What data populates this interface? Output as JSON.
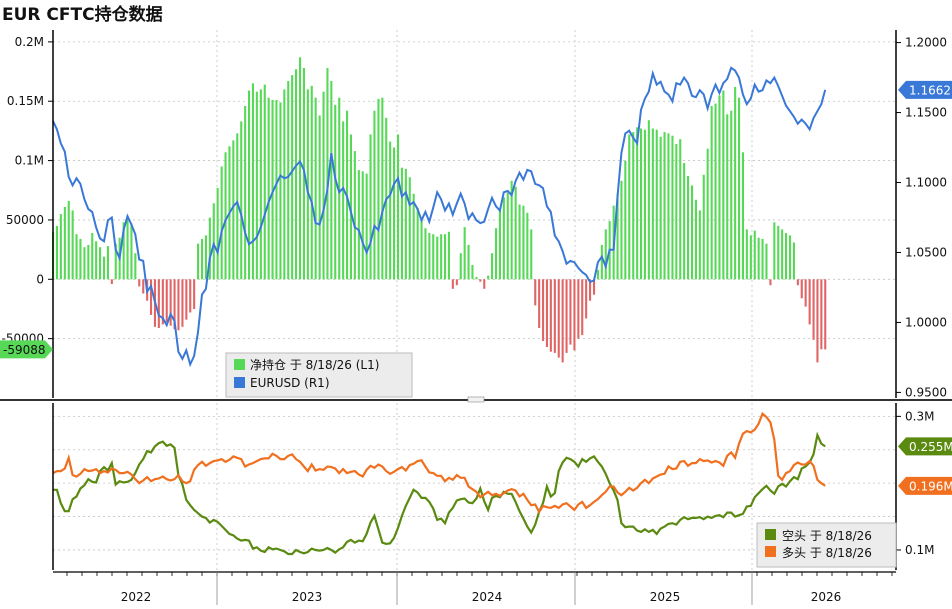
{
  "chart_title": "EUR CFTC持仓数据",
  "chart_data": [
    {
      "type": "bar",
      "panel": "top",
      "x_tick_labels": [
        "2022",
        "2023",
        "2024",
        "2025",
        "2026"
      ],
      "left_axis": {
        "ticks": [
          200000,
          150000,
          100000,
          50000,
          0,
          -50000
        ],
        "tick_labels": [
          "0.2M",
          "0.15M",
          "0.1M",
          "50000",
          "0",
          "-50000"
        ],
        "ylim": [
          -100000,
          210000
        ]
      },
      "right_axis": {
        "ticks": [
          0.95,
          1.0,
          1.05,
          1.1,
          1.15,
          1.2
        ],
        "tick_labels": [
          "0.9500",
          "1.0000",
          "1.0500",
          "1.1000",
          "1.1500",
          "1.2000"
        ],
        "ylim": [
          0.946,
          1.209
        ]
      },
      "legend": [
        {
          "label": "净持仓  于 8/18/26 (L1)",
          "color": "#57d957"
        },
        {
          "label": "EURUSD (R1)",
          "color": "#3a78d8"
        }
      ],
      "legend_position": "bottom-center",
      "grid": true,
      "series": [
        {
          "name": "净持仓",
          "type": "bar",
          "axis": "left",
          "positive_color": "#57d957",
          "negative_color": "#e06666",
          "last_value_label": "-59088",
          "values": [
            40000,
            45000,
            55000,
            61000,
            66000,
            58000,
            38000,
            34000,
            27000,
            29000,
            39000,
            32000,
            27000,
            19000,
            28000,
            -4000,
            30000,
            35000,
            48000,
            52000,
            47000,
            22000,
            -6000,
            -12000,
            -18000,
            -30000,
            -40000,
            -41000,
            -38000,
            -36000,
            -39000,
            -42000,
            -43000,
            -40000,
            -34000,
            -28000,
            -25000,
            30000,
            34000,
            37000,
            52000,
            64000,
            77000,
            95000,
            107000,
            112000,
            117000,
            123000,
            133000,
            146000,
            159000,
            165000,
            158000,
            160000,
            164000,
            153000,
            151000,
            151000,
            149000,
            160000,
            167000,
            172000,
            177000,
            187000,
            178000,
            160000,
            163000,
            153000,
            138000,
            158000,
            178000,
            167000,
            147000,
            153000,
            133000,
            142000,
            122000,
            108000,
            92000,
            91000,
            89000,
            122000,
            142000,
            152000,
            153000,
            136000,
            116000,
            111000,
            122000,
            94000,
            93000,
            86000,
            72000,
            60000,
            52000,
            43000,
            39000,
            38000,
            36000,
            38000,
            38000,
            40000,
            -8000,
            -5000,
            22000,
            44000,
            29000,
            12000,
            2000,
            -2000,
            -8000,
            3000,
            22000,
            43000,
            59000,
            69000,
            73000,
            83000,
            78000,
            63000,
            62000,
            56000,
            42000,
            -22000,
            -41000,
            -52000,
            -57000,
            -61000,
            -62000,
            -66000,
            -70000,
            -62000,
            -55000,
            -60000,
            -50000,
            -47000,
            -33000,
            -18000,
            -13000,
            8000,
            29000,
            42000,
            49000,
            62000,
            72000,
            83000,
            100000,
            122000,
            124000,
            128000,
            127000,
            126000,
            134000,
            127000,
            126000,
            120000,
            124000,
            123000,
            121000,
            114000,
            118000,
            98000,
            87000,
            79000,
            67000,
            58000,
            88000,
            110000,
            146000,
            148000,
            155000,
            159000,
            139000,
            142000,
            162000,
            153000,
            107000,
            42000,
            37000,
            41000,
            35000,
            34000,
            30000,
            -5000,
            48000,
            45000,
            42000,
            39000,
            37000,
            31000,
            -5000,
            -16000,
            -23000,
            -38000,
            -51000,
            -70000,
            -59000,
            -59088
          ]
        },
        {
          "name": "EURUSD",
          "type": "line",
          "axis": "right",
          "color": "#3a78d8",
          "last_value_label": "1.1662",
          "values": [
            1.144,
            1.138,
            1.128,
            1.122,
            1.104,
            1.098,
            1.103,
            1.099,
            1.088,
            1.081,
            1.079,
            1.068,
            1.06,
            1.058,
            1.073,
            1.075,
            1.052,
            1.046,
            1.066,
            1.076,
            1.07,
            1.063,
            1.045,
            1.044,
            1.022,
            1.026,
            1.015,
            1.005,
            1.003,
            0.998,
            1.006,
            1.001,
            0.979,
            0.974,
            0.98,
            0.97,
            0.976,
            0.993,
            1.02,
            1.024,
            1.046,
            1.056,
            1.05,
            1.065,
            1.073,
            1.078,
            1.083,
            1.086,
            1.077,
            1.064,
            1.056,
            1.058,
            1.061,
            1.068,
            1.077,
            1.086,
            1.093,
            1.099,
            1.105,
            1.103,
            1.104,
            1.108,
            1.112,
            1.115,
            1.109,
            1.093,
            1.086,
            1.071,
            1.07,
            1.08,
            1.095,
            1.121,
            1.103,
            1.093,
            1.096,
            1.09,
            1.079,
            1.068,
            1.066,
            1.057,
            1.05,
            1.057,
            1.069,
            1.066,
            1.079,
            1.088,
            1.091,
            1.099,
            1.103,
            1.09,
            1.093,
            1.084,
            1.086,
            1.081,
            1.073,
            1.079,
            1.072,
            1.082,
            1.093,
            1.088,
            1.08,
            1.085,
            1.077,
            1.085,
            1.092,
            1.085,
            1.074,
            1.078,
            1.073,
            1.071,
            1.072,
            1.081,
            1.089,
            1.083,
            1.08,
            1.093,
            1.094,
            1.091,
            1.101,
            1.107,
            1.102,
            1.109,
            1.108,
            1.099,
            1.098,
            1.096,
            1.083,
            1.079,
            1.062,
            1.058,
            1.051,
            1.042,
            1.044,
            1.043,
            1.039,
            1.036,
            1.034,
            1.029,
            1.03,
            1.043,
            1.047,
            1.04,
            1.052,
            1.052,
            1.09,
            1.121,
            1.135,
            1.137,
            1.132,
            1.128,
            1.152,
            1.16,
            1.165,
            1.178,
            1.17,
            1.172,
            1.165,
            1.163,
            1.158,
            1.171,
            1.17,
            1.175,
            1.171,
            1.162,
            1.161,
            1.166,
            1.163,
            1.153,
            1.163,
            1.17,
            1.164,
            1.171,
            1.174,
            1.182,
            1.18,
            1.175,
            1.163,
            1.156,
            1.16,
            1.17,
            1.165,
            1.166,
            1.173,
            1.171,
            1.175,
            1.169,
            1.162,
            1.155,
            1.151,
            1.147,
            1.142,
            1.145,
            1.142,
            1.138,
            1.146,
            1.151,
            1.156,
            1.1662
          ]
        }
      ]
    },
    {
      "type": "line",
      "panel": "bottom",
      "x_tick_labels": [
        "2022",
        "2023",
        "2024",
        "2025",
        "2026"
      ],
      "right_axis": {
        "ticks": [
          100000,
          300000
        ],
        "tick_labels": [
          "0.1M",
          "0.3M"
        ],
        "ylim": [
          70000,
          320000
        ]
      },
      "legend": [
        {
          "label": "空头  于 8/18/26",
          "color": "#5a8a10"
        },
        {
          "label": "多头  于 8/18/26",
          "color": "#f07020"
        }
      ],
      "legend_position": "bottom-right",
      "grid": true,
      "series": [
        {
          "name": "空头",
          "color": "#5a8a10",
          "last_value_label": "0.255M",
          "values": [
            0.19,
            0.19,
            0.17,
            0.158,
            0.158,
            0.176,
            0.18,
            0.192,
            0.197,
            0.206,
            0.202,
            0.201,
            0.218,
            0.224,
            0.219,
            0.23,
            0.198,
            0.203,
            0.201,
            0.202,
            0.205,
            0.215,
            0.228,
            0.236,
            0.248,
            0.246,
            0.255,
            0.26,
            0.262,
            0.256,
            0.258,
            0.253,
            0.212,
            0.198,
            0.175,
            0.167,
            0.16,
            0.155,
            0.15,
            0.148,
            0.141,
            0.145,
            0.142,
            0.136,
            0.13,
            0.124,
            0.122,
            0.117,
            0.114,
            0.115,
            0.114,
            0.102,
            0.104,
            0.099,
            0.097,
            0.104,
            0.101,
            0.102,
            0.1,
            0.098,
            0.094,
            0.094,
            0.1,
            0.097,
            0.095,
            0.097,
            0.102,
            0.1,
            0.099,
            0.1,
            0.103,
            0.1,
            0.096,
            0.101,
            0.104,
            0.112,
            0.115,
            0.111,
            0.114,
            0.113,
            0.124,
            0.141,
            0.151,
            0.131,
            0.111,
            0.109,
            0.11,
            0.118,
            0.133,
            0.151,
            0.166,
            0.178,
            0.19,
            0.186,
            0.178,
            0.178,
            0.172,
            0.162,
            0.145,
            0.147,
            0.14,
            0.156,
            0.163,
            0.174,
            0.176,
            0.177,
            0.171,
            0.17,
            0.177,
            0.192,
            0.173,
            0.16,
            0.178,
            0.181,
            0.179,
            0.187,
            0.184,
            0.184,
            0.172,
            0.158,
            0.147,
            0.135,
            0.126,
            0.138,
            0.157,
            0.17,
            0.195,
            0.18,
            0.185,
            0.218,
            0.231,
            0.238,
            0.236,
            0.232,
            0.225,
            0.236,
            0.232,
            0.237,
            0.24,
            0.232,
            0.225,
            0.214,
            0.2,
            0.189,
            0.175,
            0.14,
            0.134,
            0.135,
            0.135,
            0.129,
            0.127,
            0.131,
            0.127,
            0.13,
            0.124,
            0.132,
            0.135,
            0.139,
            0.14,
            0.138,
            0.145,
            0.149,
            0.146,
            0.148,
            0.148,
            0.149,
            0.146,
            0.15,
            0.148,
            0.151,
            0.152,
            0.149,
            0.156,
            0.156,
            0.15,
            0.152,
            0.154,
            0.165,
            0.166,
            0.179,
            0.185,
            0.191,
            0.196,
            0.189,
            0.184,
            0.195,
            0.199,
            0.195,
            0.203,
            0.209,
            0.206,
            0.222,
            0.225,
            0.231,
            0.243,
            0.272,
            0.259,
            0.255
          ]
        },
        {
          "name": "多头",
          "color": "#f07020",
          "last_value_label": "0.196M",
          "values": [
            0.215,
            0.218,
            0.218,
            0.222,
            0.238,
            0.212,
            0.21,
            0.214,
            0.221,
            0.218,
            0.219,
            0.221,
            0.215,
            0.218,
            0.216,
            0.222,
            0.22,
            0.215,
            0.215,
            0.217,
            0.213,
            0.206,
            0.2,
            0.204,
            0.209,
            0.203,
            0.206,
            0.207,
            0.21,
            0.206,
            0.204,
            0.206,
            0.212,
            0.203,
            0.2,
            0.203,
            0.22,
            0.227,
            0.232,
            0.226,
            0.23,
            0.233,
            0.234,
            0.236,
            0.232,
            0.235,
            0.24,
            0.238,
            0.236,
            0.225,
            0.228,
            0.23,
            0.233,
            0.236,
            0.237,
            0.237,
            0.244,
            0.241,
            0.236,
            0.236,
            0.241,
            0.243,
            0.236,
            0.232,
            0.225,
            0.218,
            0.228,
            0.219,
            0.221,
            0.22,
            0.225,
            0.224,
            0.222,
            0.215,
            0.221,
            0.215,
            0.217,
            0.218,
            0.213,
            0.21,
            0.22,
            0.226,
            0.223,
            0.228,
            0.225,
            0.218,
            0.214,
            0.217,
            0.221,
            0.224,
            0.219,
            0.227,
            0.229,
            0.233,
            0.234,
            0.225,
            0.216,
            0.215,
            0.211,
            0.211,
            0.203,
            0.208,
            0.205,
            0.212,
            0.208,
            0.208,
            0.195,
            0.191,
            0.187,
            0.179,
            0.183,
            0.187,
            0.182,
            0.184,
            0.181,
            0.185,
            0.189,
            0.191,
            0.189,
            0.18,
            0.184,
            0.175,
            0.167,
            0.168,
            0.157,
            0.166,
            0.164,
            0.163,
            0.166,
            0.163,
            0.168,
            0.17,
            0.165,
            0.16,
            0.168,
            0.172,
            0.163,
            0.167,
            0.172,
            0.176,
            0.182,
            0.187,
            0.195,
            0.195,
            0.186,
            0.182,
            0.187,
            0.193,
            0.189,
            0.193,
            0.2,
            0.205,
            0.2,
            0.207,
            0.21,
            0.213,
            0.214,
            0.225,
            0.221,
            0.222,
            0.232,
            0.233,
            0.226,
            0.23,
            0.23,
            0.236,
            0.233,
            0.234,
            0.231,
            0.233,
            0.231,
            0.226,
            0.241,
            0.246,
            0.238,
            0.259,
            0.274,
            0.278,
            0.276,
            0.28,
            0.289,
            0.304,
            0.299,
            0.291,
            0.265,
            0.211,
            0.205,
            0.215,
            0.218,
            0.227,
            0.231,
            0.228,
            0.228,
            0.233,
            0.226,
            0.205,
            0.2,
            0.196
          ]
        }
      ]
    }
  ],
  "colors": {
    "grid": "#c4c4c4",
    "axis": "#000000",
    "net_positive": "#57d957",
    "net_negative": "#e06666",
    "eurusd": "#3a78d8",
    "short": "#5a8a10",
    "long": "#f07020"
  }
}
